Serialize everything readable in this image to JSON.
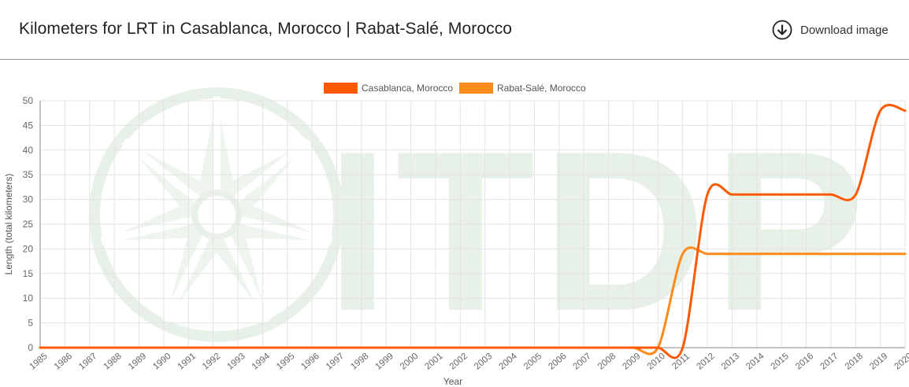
{
  "header": {
    "title": "Kilometers for LRT in Casablanca, Morocco | Rabat-Salé, Morocco",
    "download_label": "Download image",
    "download_icon": "arrow-down-circle-icon"
  },
  "watermark": {
    "text": "ITDP",
    "color": "#e8f1e8"
  },
  "colors": {
    "grid": "#e3e3e3",
    "axis": "#888888",
    "tick_text": "#666666"
  },
  "chart_data": {
    "type": "line",
    "title": "",
    "xlabel": "Year",
    "ylabel": "Length (total kilometers)",
    "x": [
      "1985",
      "1986",
      "1987",
      "1988",
      "1989",
      "1990",
      "1991",
      "1992",
      "1993",
      "1994",
      "1995",
      "1996",
      "1997",
      "1998",
      "1999",
      "2000",
      "2001",
      "2002",
      "2003",
      "2004",
      "2005",
      "2006",
      "2007",
      "2008",
      "2009",
      "2010",
      "2011",
      "2012",
      "2013",
      "2014",
      "2015",
      "2016",
      "2017",
      "2018",
      "2019",
      "2020"
    ],
    "ylim": [
      0,
      50
    ],
    "yticks": [
      0,
      5,
      10,
      15,
      20,
      25,
      30,
      35,
      40,
      45,
      50
    ],
    "grid": true,
    "legend_position": "top-center",
    "series": [
      {
        "name": "Casablanca, Morocco",
        "color": "#ff5a00",
        "values": [
          0,
          0,
          0,
          0,
          0,
          0,
          0,
          0,
          0,
          0,
          0,
          0,
          0,
          0,
          0,
          0,
          0,
          0,
          0,
          0,
          0,
          0,
          0,
          0,
          0,
          0,
          0,
          31,
          31,
          31,
          31,
          31,
          31,
          31,
          48,
          48
        ]
      },
      {
        "name": "Rabat-Salé, Morocco",
        "color": "#ff8a1a",
        "values": [
          0,
          0,
          0,
          0,
          0,
          0,
          0,
          0,
          0,
          0,
          0,
          0,
          0,
          0,
          0,
          0,
          0,
          0,
          0,
          0,
          0,
          0,
          0,
          0,
          0,
          0,
          19,
          19,
          19,
          19,
          19,
          19,
          19,
          19,
          19,
          19
        ]
      }
    ]
  }
}
